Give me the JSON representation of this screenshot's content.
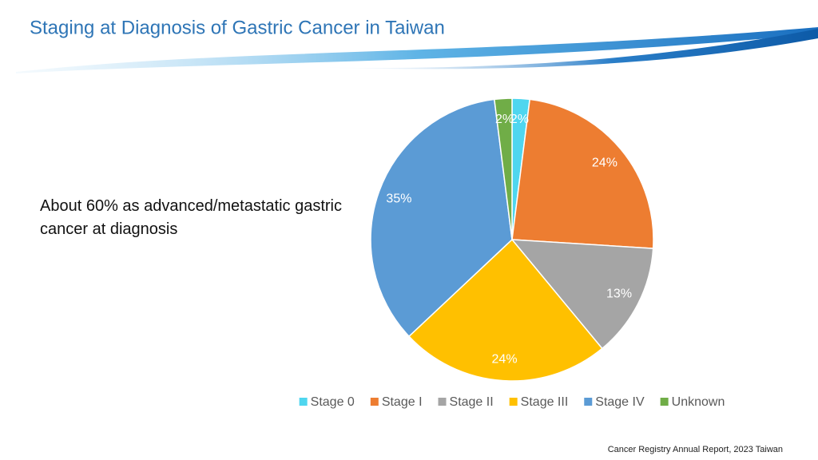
{
  "chart_data": {
    "type": "pie",
    "title": "Staging at Diagnosis of Gastric Cancer in Taiwan",
    "categories": [
      "Stage 0",
      "Stage I",
      "Stage II",
      "Stage III",
      "Stage IV",
      "Unknown"
    ],
    "values": [
      2,
      24,
      13,
      24,
      35,
      2
    ],
    "value_labels": [
      "2%",
      "24%",
      "13%",
      "24%",
      "35%",
      "2%"
    ],
    "colors": [
      "#4fd6ef",
      "#ed7d31",
      "#a5a5a5",
      "#ffc000",
      "#5b9bd5",
      "#70ad47"
    ],
    "legend": "bottom"
  },
  "annotation": "About 60% as advanced/metastatic gastric cancer at diagnosis",
  "source": "Cancer Registry Annual Report, 2023 Taiwan"
}
